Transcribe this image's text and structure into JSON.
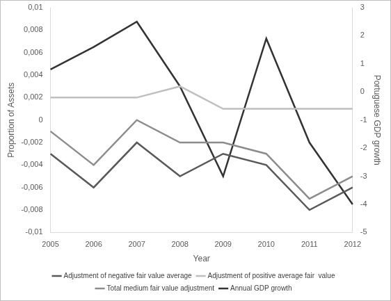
{
  "chart_data": {
    "type": "line",
    "categories": [
      "2005",
      "2006",
      "2007",
      "2008",
      "2009",
      "2010",
      "2011",
      "2012"
    ],
    "x_label": "Year",
    "y_label": "Proportion of Assets",
    "y2_label": "Portuguese GDP growth",
    "ylim": [
      -0.01,
      0.01
    ],
    "yticks": [
      {
        "value": 0.01,
        "label": "0,01"
      },
      {
        "value": 0.008,
        "label": "0,008"
      },
      {
        "value": 0.006,
        "label": "0,006"
      },
      {
        "value": 0.004,
        "label": "0,004"
      },
      {
        "value": 0.002,
        "label": "0,002"
      },
      0,
      {
        "value": -0.002,
        "label": "-0,002"
      },
      {
        "value": -0.004,
        "label": "-0,004"
      },
      {
        "value": -0.006,
        "label": "-0,006"
      },
      {
        "value": -0.008,
        "label": "-0,008"
      },
      {
        "value": -0.01,
        "label": "-0,01"
      }
    ],
    "y2lim": [
      -5,
      3
    ],
    "y2ticks": [
      -5,
      -4,
      -3,
      -2,
      -1,
      0,
      1,
      2,
      3
    ],
    "grid": false,
    "legend": "bottom",
    "series": [
      {
        "name": "Adjustment of negative fair value average",
        "color": "#595959",
        "values": [
          -0.003,
          -0.006,
          -0.002,
          -0.005,
          -0.003,
          -0.004,
          -0.008,
          -0.006
        ]
      },
      {
        "name": "Adjustment of positive average fair  value",
        "color": "#bfbfbf",
        "values": [
          0.002,
          0.002,
          0.002,
          0.003,
          0.001,
          0.001,
          0.001,
          0.001
        ]
      },
      {
        "name": "Total medium fair value adjustment",
        "color": "#8c8c8c",
        "values": [
          -0.001,
          -0.004,
          0.0,
          -0.002,
          -0.002,
          -0.003,
          -0.007,
          -0.005
        ]
      },
      {
        "name": "Annual GDP growth",
        "color": "#333333",
        "axis": "y2",
        "values": [
          0.8,
          1.6,
          2.5,
          0.2,
          -3.0,
          1.9,
          -1.8,
          -4.0
        ]
      }
    ]
  }
}
